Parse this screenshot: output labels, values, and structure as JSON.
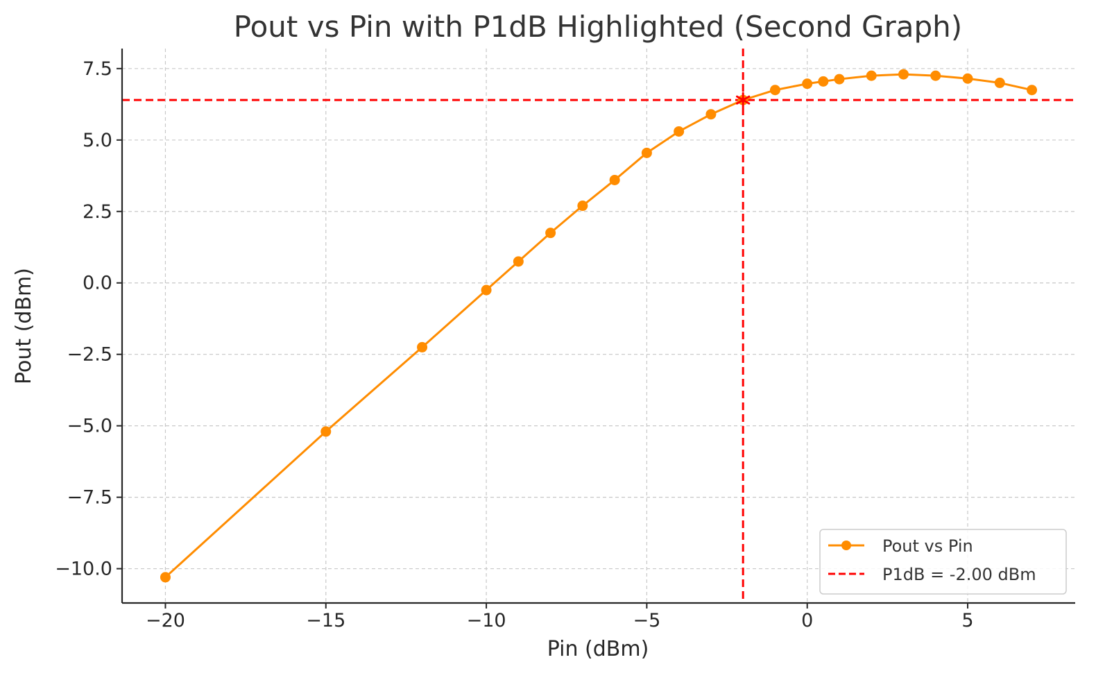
{
  "chart_data": {
    "type": "line",
    "title": "Pout vs Pin with P1dB Highlighted (Second Graph)",
    "xlabel": "Pin (dBm)",
    "ylabel": "Pout (dBm)",
    "xlim": [
      -21.35,
      8.35
    ],
    "ylim": [
      -11.2,
      8.2
    ],
    "xticks": [
      -20,
      -15,
      -10,
      -5,
      0,
      5
    ],
    "xtick_labels": [
      "−20",
      "−15",
      "−10",
      "−5",
      "0",
      "5"
    ],
    "yticks": [
      7.5,
      5.0,
      2.5,
      0.0,
      -2.5,
      -5.0,
      -7.5,
      -10.0
    ],
    "ytick_labels": [
      "7.5",
      "5.0",
      "2.5",
      "0.0",
      "−2.5",
      "−5.0",
      "−7.5",
      "−10.0"
    ],
    "grid": true,
    "legend_position": "lower-right",
    "series": [
      {
        "name": "Pout vs Pin",
        "color": "#ff8c00",
        "marker": "circle",
        "x": [
          -20,
          -15,
          -12,
          -10,
          -9,
          -8,
          -7,
          -6,
          -5,
          -4,
          -3,
          -2,
          -1,
          0,
          0.5,
          1,
          2,
          3,
          4,
          5,
          6,
          7
        ],
        "y": [
          -10.3,
          -5.2,
          -2.25,
          -0.25,
          0.75,
          1.75,
          2.7,
          3.6,
          4.55,
          5.3,
          5.9,
          6.4,
          6.75,
          6.97,
          7.05,
          7.13,
          7.25,
          7.3,
          7.25,
          7.15,
          7.0,
          6.75
        ]
      }
    ],
    "p1db": {
      "label": "P1dB = -2.00 dBm",
      "color": "#ff0000",
      "x": -2.0,
      "y": 6.4,
      "marker": "x-star"
    }
  }
}
